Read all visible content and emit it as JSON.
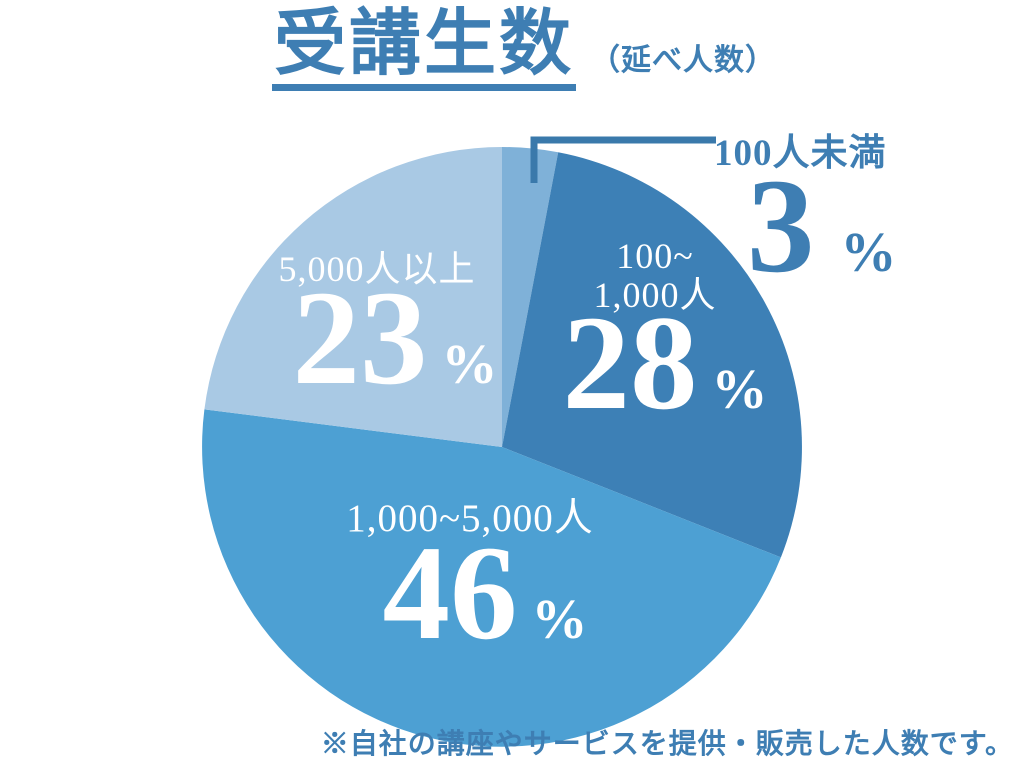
{
  "title": {
    "text": "受講生数",
    "subtitle": "（延べ人数）"
  },
  "footnote": "※自社の講座やサービスを提供・販売した人数です。",
  "colors": {
    "accent": "#3e7eb3",
    "callout_line": "#3a79ab",
    "background": "#ffffff",
    "label_on_slice": "#ffffff"
  },
  "chart_data": {
    "type": "pie",
    "title": "受講生数（延べ人数）",
    "unit": "%",
    "start_angle_deg": 0,
    "direction": "clockwise",
    "legend_position": "on-slice",
    "annotations": [
      "100人未満 3% はコールアウト線で外側に表示"
    ],
    "slices": [
      {
        "label": "100人未満",
        "value": 3,
        "unit": "%",
        "color": "#7fb1d8",
        "label_position": "outside-callout"
      },
      {
        "label": "100~1,000人",
        "label_lines": [
          "100~",
          "1,000人"
        ],
        "value": 28,
        "unit": "%",
        "color": "#3d80b6",
        "label_position": "inside"
      },
      {
        "label": "1,000~5,000人",
        "value": 46,
        "unit": "%",
        "color": "#4da0d3",
        "label_position": "inside"
      },
      {
        "label": "5,000人以上",
        "value": 23,
        "unit": "%",
        "color": "#a9c9e4",
        "label_position": "inside"
      }
    ]
  }
}
